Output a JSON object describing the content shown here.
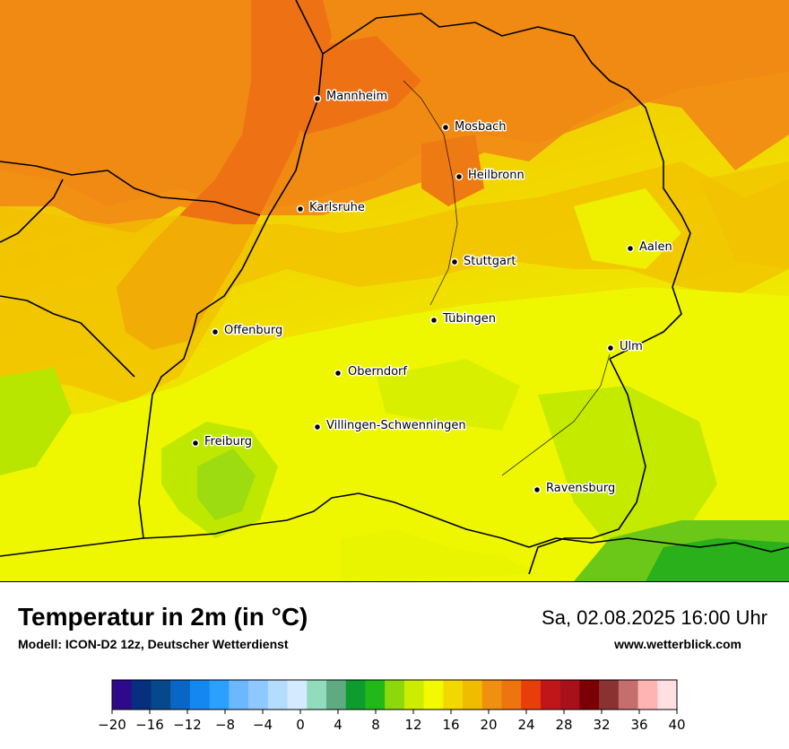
{
  "header": {
    "title": "Temperatur in 2m (in °C)",
    "model": "Modell: ICON-D2 12z, Deutscher Wetterdienst",
    "datetime": "Sa, 02.08.2025 16:00 Uhr",
    "website": "www.wetterblick.com"
  },
  "cities": [
    {
      "name": "Mannheim"
    },
    {
      "name": "Mosbach"
    },
    {
      "name": "Heilbronn"
    },
    {
      "name": "Karlsruhe"
    },
    {
      "name": "Aalen"
    },
    {
      "name": "Stuttgart"
    },
    {
      "name": "Tübingen"
    },
    {
      "name": "Offenburg"
    },
    {
      "name": "Ulm"
    },
    {
      "name": "Oberndorf"
    },
    {
      "name": "Villingen-Schwenningen"
    },
    {
      "name": "Freiburg"
    },
    {
      "name": "Ravensburg"
    }
  ],
  "color_scale": {
    "colors": [
      "#2e0a8a",
      "#06307f",
      "#05498c",
      "#0a66c4",
      "#1388f0",
      "#2ba0ff",
      "#6cb8ff",
      "#8ec8ff",
      "#b4dcff",
      "#d4ebff",
      "#92dcbe",
      "#5faa82",
      "#0f9c2e",
      "#22b81a",
      "#8cd80a",
      "#ccec00",
      "#f2f900",
      "#f2d800",
      "#f0bc00",
      "#f09010",
      "#ee7410",
      "#e73e0a",
      "#c0161a",
      "#a8101a",
      "#7a0006",
      "#8a3232",
      "#c46e6e",
      "#ffb4b4",
      "#ffe0e2"
    ],
    "tick_labels": [
      "−20",
      "−16",
      "−12",
      "−8",
      "−4",
      "0",
      "4",
      "8",
      "12",
      "16",
      "20",
      "24",
      "28",
      "32",
      "36",
      "40"
    ],
    "min": -20,
    "max": 40
  }
}
